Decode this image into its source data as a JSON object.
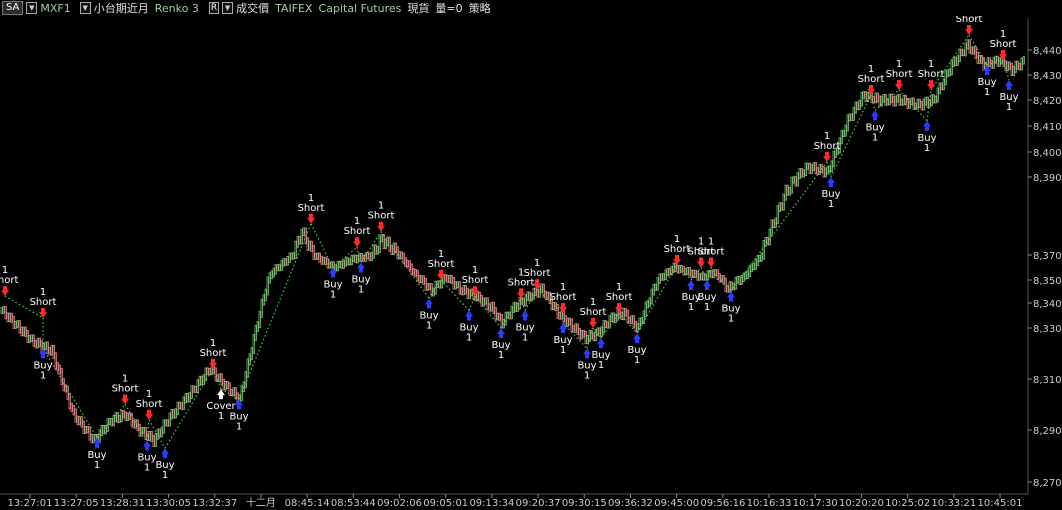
{
  "toolbar": {
    "symbol": "SA",
    "contract": "MXF1",
    "name": "小台期近月",
    "chart_type": "Renko 3",
    "r_label": "R",
    "field": "成交價",
    "exchange": "TAIFEX",
    "category": "Capital Futures",
    "session": "現貨",
    "volume": "量=0",
    "strategy": "策略"
  },
  "colors": {
    "background": "#000000",
    "brick_up": "#7dc47d",
    "brick_down": "#e08a94",
    "trade_line": "#3ed13e",
    "short_arrow": "#ff2a2a",
    "buy_arrow": "#2a3cff",
    "axis_text": "#cccccc"
  },
  "chart_data": {
    "type": "renko",
    "y_ticks": [
      8270,
      8290,
      8310,
      8330,
      8340,
      8350,
      8370,
      8390,
      8400,
      8410,
      8420,
      8430,
      8440
    ],
    "y_tick_labels": [
      "8,270",
      "8,290",
      "8,310",
      "8,330",
      "8,340",
      "8,350",
      "8,370",
      "8,390",
      "8,400",
      "8,410",
      "8,420",
      "8,430",
      "8,440"
    ],
    "x_tick_labels": [
      "13:27:01",
      "13:27:05",
      "13:28:31",
      "13:30:05",
      "13:32:37",
      "十二月",
      "08:45:14",
      "08:53:44",
      "09:02:06",
      "09:05:01",
      "09:13:34",
      "09:20:37",
      "09:30:15",
      "09:36:32",
      "09:45:00",
      "09:56:16",
      "10:16:33",
      "10:17:30",
      "10:20:20",
      "10:25:02",
      "10:33:21",
      "10:45:01"
    ],
    "price_path": [
      {
        "i": 0,
        "p": 8337
      },
      {
        "i": 30,
        "p": 8325
      },
      {
        "i": 50,
        "p": 8321
      },
      {
        "i": 72,
        "p": 8296
      },
      {
        "i": 92,
        "p": 8286
      },
      {
        "i": 110,
        "p": 8294
      },
      {
        "i": 124,
        "p": 8296
      },
      {
        "i": 138,
        "p": 8290
      },
      {
        "i": 152,
        "p": 8286
      },
      {
        "i": 168,
        "p": 8295
      },
      {
        "i": 188,
        "p": 8304
      },
      {
        "i": 208,
        "p": 8314
      },
      {
        "i": 222,
        "p": 8308
      },
      {
        "i": 238,
        "p": 8302
      },
      {
        "i": 270,
        "p": 8356
      },
      {
        "i": 300,
        "p": 8376
      },
      {
        "i": 316,
        "p": 8368
      },
      {
        "i": 332,
        "p": 8360
      },
      {
        "i": 352,
        "p": 8367
      },
      {
        "i": 368,
        "p": 8369
      },
      {
        "i": 380,
        "p": 8374
      },
      {
        "i": 398,
        "p": 8370
      },
      {
        "i": 416,
        "p": 8352
      },
      {
        "i": 430,
        "p": 8345
      },
      {
        "i": 444,
        "p": 8352
      },
      {
        "i": 458,
        "p": 8346
      },
      {
        "i": 474,
        "p": 8343
      },
      {
        "i": 490,
        "p": 8338
      },
      {
        "i": 500,
        "p": 8332
      },
      {
        "i": 512,
        "p": 8338
      },
      {
        "i": 524,
        "p": 8342
      },
      {
        "i": 540,
        "p": 8346
      },
      {
        "i": 556,
        "p": 8336
      },
      {
        "i": 572,
        "p": 8330
      },
      {
        "i": 584,
        "p": 8326
      },
      {
        "i": 596,
        "p": 8328
      },
      {
        "i": 610,
        "p": 8334
      },
      {
        "i": 622,
        "p": 8336
      },
      {
        "i": 636,
        "p": 8330
      },
      {
        "i": 656,
        "p": 8350
      },
      {
        "i": 672,
        "p": 8360
      },
      {
        "i": 688,
        "p": 8356
      },
      {
        "i": 700,
        "p": 8352
      },
      {
        "i": 712,
        "p": 8356
      },
      {
        "i": 726,
        "p": 8346
      },
      {
        "i": 742,
        "p": 8352
      },
      {
        "i": 762,
        "p": 8372
      },
      {
        "i": 784,
        "p": 8386
      },
      {
        "i": 806,
        "p": 8394
      },
      {
        "i": 826,
        "p": 8392
      },
      {
        "i": 846,
        "p": 8412
      },
      {
        "i": 862,
        "p": 8422
      },
      {
        "i": 878,
        "p": 8420
      },
      {
        "i": 898,
        "p": 8420
      },
      {
        "i": 916,
        "p": 8418
      },
      {
        "i": 932,
        "p": 8420
      },
      {
        "i": 950,
        "p": 8434
      },
      {
        "i": 966,
        "p": 8442
      },
      {
        "i": 982,
        "p": 8434
      },
      {
        "i": 998,
        "p": 8436
      },
      {
        "i": 1010,
        "p": 8432
      },
      {
        "i": 1024,
        "p": 8436
      }
    ],
    "signals": [
      {
        "type": "Short",
        "qty": "1",
        "i": 4,
        "p": 8343
      },
      {
        "type": "Short",
        "qty": "1",
        "i": 42,
        "p": 8334
      },
      {
        "type": "Buy",
        "qty": "1",
        "i": 42,
        "p": 8322
      },
      {
        "type": "Buy",
        "qty": "1",
        "i": 96,
        "p": 8287
      },
      {
        "type": "Short",
        "qty": "1",
        "i": 124,
        "p": 8300
      },
      {
        "type": "Short",
        "qty": "1",
        "i": 148,
        "p": 8294
      },
      {
        "type": "Buy",
        "qty": "1",
        "i": 146,
        "p": 8286
      },
      {
        "type": "Buy",
        "qty": "1",
        "i": 164,
        "p": 8283
      },
      {
        "type": "Short",
        "qty": "1",
        "i": 212,
        "p": 8314
      },
      {
        "type": "Cover",
        "qty": "1",
        "i": 220,
        "p": 8306
      },
      {
        "type": "Buy",
        "qty": "1",
        "i": 238,
        "p": 8302
      },
      {
        "type": "Short",
        "qty": "1",
        "i": 310,
        "p": 8378
      },
      {
        "type": "Buy",
        "qty": "1",
        "i": 332,
        "p": 8360
      },
      {
        "type": "Short",
        "qty": "1",
        "i": 356,
        "p": 8372
      },
      {
        "type": "Buy",
        "qty": "1",
        "i": 360,
        "p": 8364
      },
      {
        "type": "Short",
        "qty": "1",
        "i": 380,
        "p": 8376
      },
      {
        "type": "Short",
        "qty": "1",
        "i": 440,
        "p": 8350
      },
      {
        "type": "Buy",
        "qty": "1",
        "i": 428,
        "p": 8342
      },
      {
        "type": "Short",
        "qty": "1",
        "i": 474,
        "p": 8343
      },
      {
        "type": "Buy",
        "qty": "1",
        "i": 468,
        "p": 8337
      },
      {
        "type": "Short",
        "qty": "1",
        "i": 520,
        "p": 8342
      },
      {
        "type": "Short",
        "qty": "1",
        "i": 536,
        "p": 8346
      },
      {
        "type": "Buy",
        "qty": "1",
        "i": 500,
        "p": 8330
      },
      {
        "type": "Buy",
        "qty": "1",
        "i": 524,
        "p": 8337
      },
      {
        "type": "Short",
        "qty": "1",
        "i": 562,
        "p": 8336
      },
      {
        "type": "Buy",
        "qty": "1",
        "i": 562,
        "p": 8332
      },
      {
        "type": "Short",
        "qty": "1",
        "i": 592,
        "p": 8330
      },
      {
        "type": "Buy",
        "qty": "1",
        "i": 586,
        "p": 8322
      },
      {
        "type": "Buy",
        "qty": "1",
        "i": 600,
        "p": 8326
      },
      {
        "type": "Short",
        "qty": "1",
        "i": 618,
        "p": 8336
      },
      {
        "type": "Buy",
        "qty": "1",
        "i": 636,
        "p": 8328
      },
      {
        "type": "Short",
        "qty": "1",
        "i": 676,
        "p": 8362
      },
      {
        "type": "Short",
        "qty": "1",
        "i": 700,
        "p": 8360
      },
      {
        "type": "Short",
        "qty": "1",
        "i": 710,
        "p": 8360
      },
      {
        "type": "Buy",
        "qty": "1",
        "i": 690,
        "p": 8350
      },
      {
        "type": "Buy",
        "qty": "1",
        "i": 706,
        "p": 8350
      },
      {
        "type": "Buy",
        "qty": "1",
        "i": 730,
        "p": 8345
      },
      {
        "type": "Short",
        "qty": "1",
        "i": 826,
        "p": 8396
      },
      {
        "type": "Buy",
        "qty": "1",
        "i": 830,
        "p": 8390
      },
      {
        "type": "Short",
        "qty": "1",
        "i": 870,
        "p": 8422
      },
      {
        "type": "Buy",
        "qty": "1",
        "i": 874,
        "p": 8416
      },
      {
        "type": "Short",
        "qty": "1",
        "i": 898,
        "p": 8424
      },
      {
        "type": "Short",
        "qty": "1",
        "i": 930,
        "p": 8424
      },
      {
        "type": "Buy",
        "qty": "1",
        "i": 926,
        "p": 8412
      },
      {
        "type": "Short",
        "qty": "1",
        "i": 968,
        "p": 8446
      },
      {
        "type": "Buy",
        "qty": "1",
        "i": 986,
        "p": 8434
      },
      {
        "type": "Short",
        "qty": "1",
        "i": 1002,
        "p": 8436
      },
      {
        "type": "Buy",
        "qty": "1",
        "i": 1008,
        "p": 8428
      }
    ]
  }
}
